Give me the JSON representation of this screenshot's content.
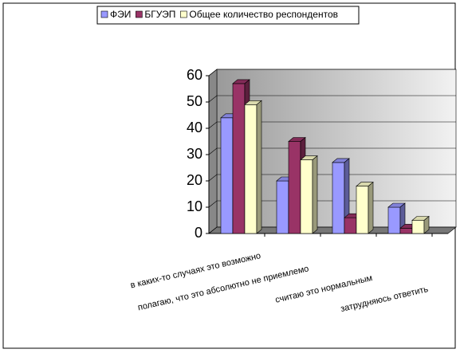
{
  "chart_data": {
    "type": "bar3d",
    "categories": [
      "в каких-то случаях это возможно",
      "полагаю, что это абсолютно не приемлемо",
      "считаю это нормальным",
      "затрудняюсь ответить"
    ],
    "series": [
      {
        "name": "ФЭИ",
        "color": "#9999ff",
        "values": [
          44,
          20,
          27,
          10
        ]
      },
      {
        "name": "БГУЭП",
        "color": "#993366",
        "values": [
          57,
          35,
          6,
          2
        ]
      },
      {
        "name": "Общее количество респондентов",
        "color": "#ffffcc",
        "values": [
          49,
          28,
          18,
          5
        ]
      }
    ],
    "ylim": [
      0,
      60
    ],
    "yticks": [
      0,
      10,
      20,
      30,
      40,
      50,
      60
    ],
    "grid": true,
    "legend": "top"
  }
}
